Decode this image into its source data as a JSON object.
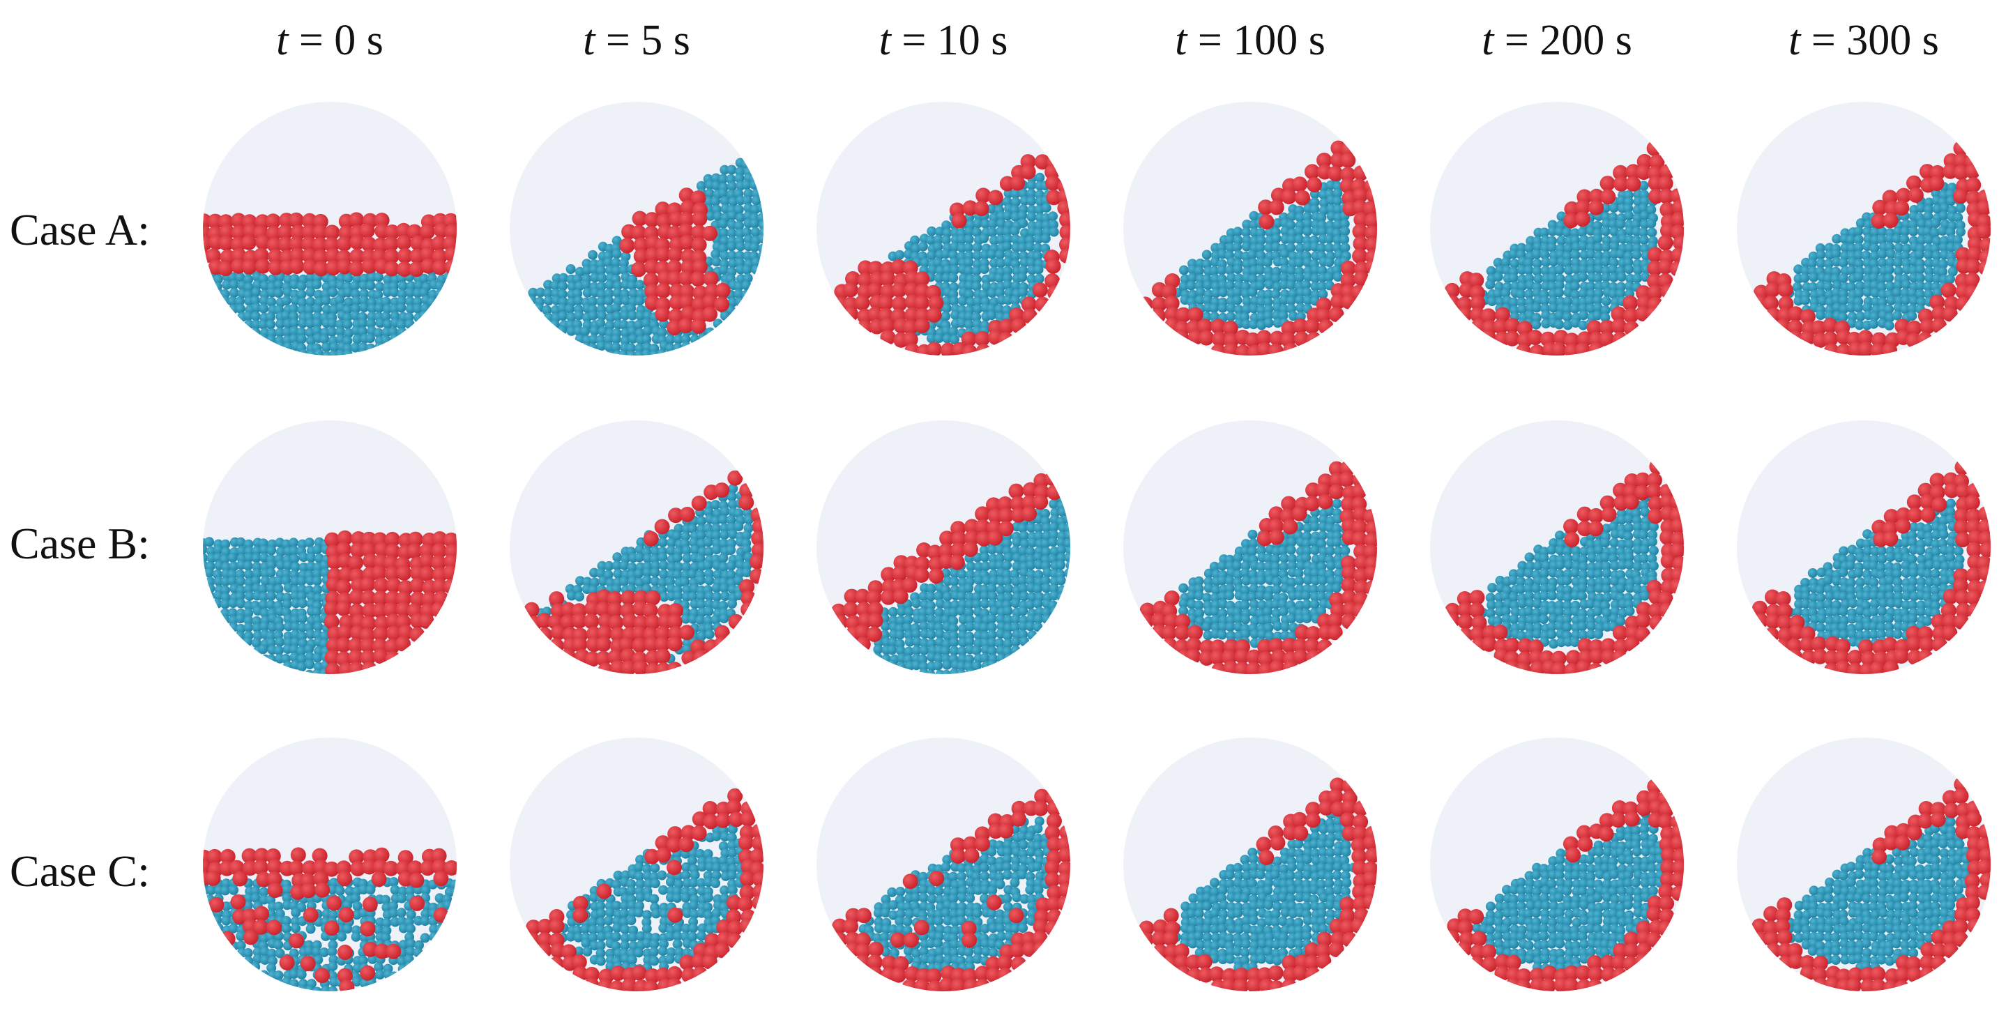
{
  "column_titles": [
    {
      "var": "t",
      "eq": " = 0 s"
    },
    {
      "var": "t",
      "eq": " = 5 s"
    },
    {
      "var": "t",
      "eq": " = 10 s"
    },
    {
      "var": "t",
      "eq": " = 100 s"
    },
    {
      "var": "t",
      "eq": " = 200 s"
    },
    {
      "var": "t",
      "eq": " = 300 s"
    }
  ],
  "row_labels": [
    "Case A:",
    "Case B:",
    "Case C:"
  ],
  "colors": {
    "drum_background": "#eef2f8",
    "small_particles": "#1c7fa0",
    "large_particles": "#c8202a"
  }
}
